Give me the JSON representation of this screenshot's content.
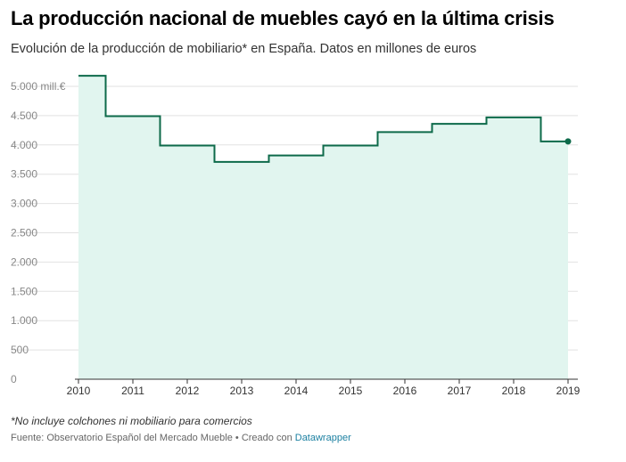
{
  "header": {
    "title": "La producción nacional de muebles cayó en la última crisis",
    "subtitle": "Evolución de la producción de mobiliario* en España. Datos en millones de euros"
  },
  "footer": {
    "note": "*No incluye colchones ni mobiliario para comercios",
    "source_prefix": "Fuente: Observatorio Español del Mercado Mueble • Creado con ",
    "source_link": "Datawrapper"
  },
  "colors": {
    "line": "#0d6a4a",
    "area": "#e1f5ef",
    "grid": "#e2e2e2",
    "axis": "#333333",
    "link": "#1d81a2"
  },
  "chart_data": {
    "type": "area",
    "style": "step",
    "title": "La producción nacional de muebles cayó en la última crisis",
    "subtitle": "Evolución de la producción de mobiliario* en España. Datos en millones de euros",
    "xlabel": "",
    "ylabel": "",
    "unit": "mill.€",
    "xlim": [
      2010,
      2019
    ],
    "ylim": [
      0,
      5000
    ],
    "grid": true,
    "x_ticks": [
      "2010",
      "2011",
      "2012",
      "2013",
      "2014",
      "2015",
      "2016",
      "2017",
      "2018",
      "2019"
    ],
    "y_ticks": [
      {
        "value": 0,
        "label": "0"
      },
      {
        "value": 500,
        "label": "500"
      },
      {
        "value": 1000,
        "label": "1.000"
      },
      {
        "value": 1500,
        "label": "1.500"
      },
      {
        "value": 2000,
        "label": "2.000"
      },
      {
        "value": 2500,
        "label": "2.500"
      },
      {
        "value": 3000,
        "label": "3.000"
      },
      {
        "value": 3500,
        "label": "3.500"
      },
      {
        "value": 4000,
        "label": "4.000"
      },
      {
        "value": 4500,
        "label": "4.500"
      },
      {
        "value": 5000,
        "label": "5.000 mill.€"
      }
    ],
    "series": [
      {
        "x": [
          2010,
          2011,
          2012,
          2013,
          2014,
          2015,
          2016,
          2017,
          2018,
          2019
        ],
        "values": [
          5180,
          4490,
          3990,
          3710,
          3820,
          3990,
          4220,
          4360,
          4470,
          4060
        ]
      }
    ]
  }
}
